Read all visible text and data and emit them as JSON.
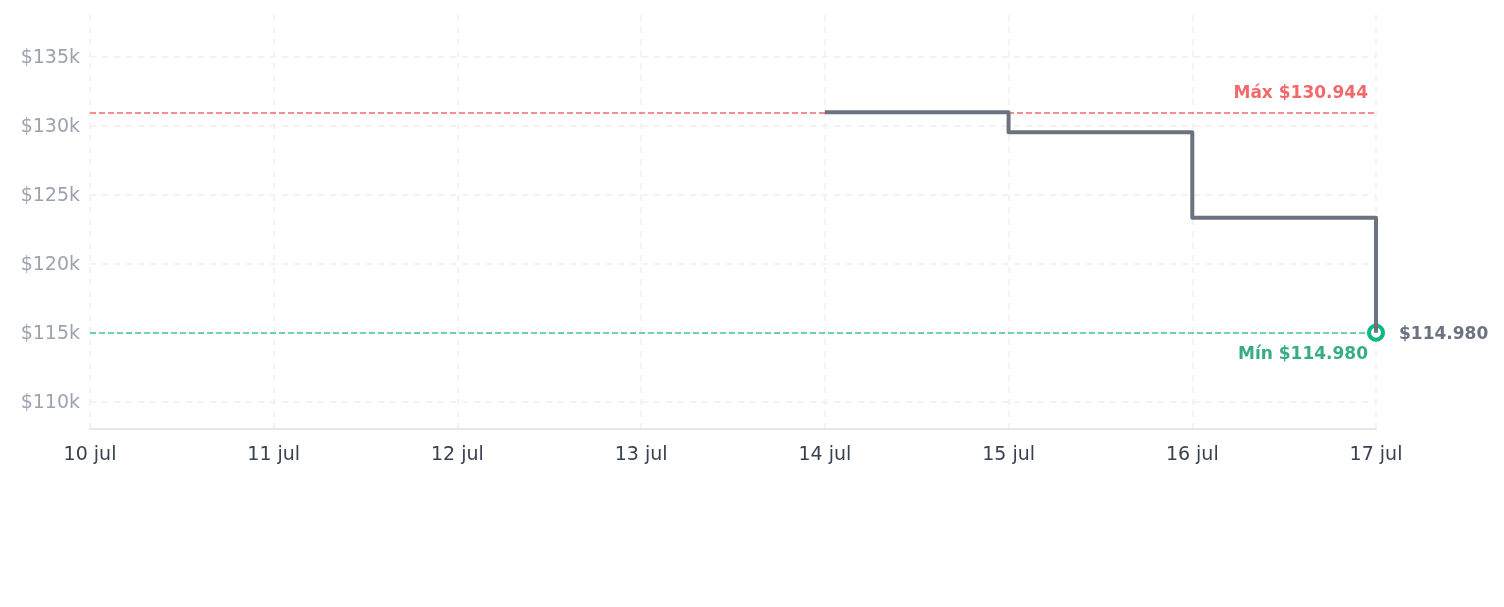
{
  "chart_data": {
    "type": "step",
    "x": [
      "--07-14",
      "--07-15",
      "--07-16",
      "--07-17"
    ],
    "series": [
      {
        "color": "#6b7280",
        "values": [
          130944,
          129500,
          123300,
          114980
        ]
      }
    ],
    "xlim": [
      "--07-10",
      "--07-17"
    ],
    "xticks": [
      {
        "value": "--07-10",
        "label": "10 jul"
      },
      {
        "value": "--07-11",
        "label": "11 jul"
      },
      {
        "value": "--07-12",
        "label": "12 jul"
      },
      {
        "value": "--07-13",
        "label": "13 jul"
      },
      {
        "value": "--07-14",
        "label": "14 jul"
      },
      {
        "value": "--07-15",
        "label": "15 jul"
      },
      {
        "value": "--07-16",
        "label": "16 jul"
      },
      {
        "value": "--07-17",
        "label": "17 jul"
      }
    ],
    "ylim": [
      108000,
      138000
    ],
    "yticks": [
      {
        "value": 110000,
        "label": "$110k"
      },
      {
        "value": 115000,
        "label": "$115k"
      },
      {
        "value": 120000,
        "label": "$120k"
      },
      {
        "value": 125000,
        "label": "$125k"
      },
      {
        "value": 130000,
        "label": "$130k"
      },
      {
        "value": 135000,
        "label": "$135k"
      }
    ],
    "ref_lines": [
      {
        "axis": "y",
        "value": 130944,
        "label": "Máx $130.944",
        "color": "#ef4444",
        "line_style": "dashed"
      },
      {
        "axis": "y",
        "value": 114980,
        "label": "Mín $114.980",
        "color": "#10b981",
        "line_style": "dashed"
      }
    ],
    "annotations": [
      {
        "text": "$114.980",
        "x": "--07-17",
        "y": 114980
      }
    ],
    "grid": true,
    "marker": "none",
    "line_style": "solid"
  }
}
